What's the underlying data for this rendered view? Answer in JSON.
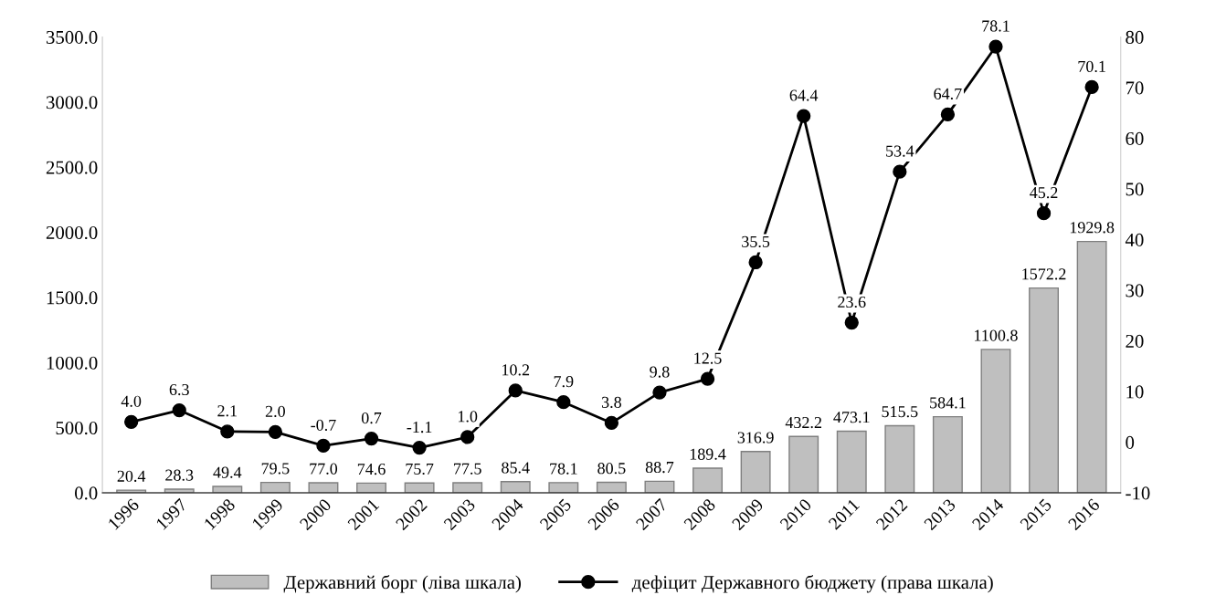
{
  "chart_data": {
    "type": "bar",
    "categories": [
      "1996",
      "1997",
      "1998",
      "1999",
      "2000",
      "2001",
      "2002",
      "2003",
      "2004",
      "2005",
      "2006",
      "2007",
      "2008",
      "2009",
      "2010",
      "2011",
      "2012",
      "2013",
      "2014",
      "2015",
      "2016"
    ],
    "series": [
      {
        "name": "Державний борг (ліва шкала)",
        "color": "#bfbfbf",
        "values": [
          20.4,
          28.3,
          49.4,
          79.5,
          77.0,
          74.6,
          75.7,
          77.5,
          85.4,
          78.1,
          80.5,
          88.7,
          189.4,
          316.9,
          432.2,
          473.1,
          515.5,
          584.1,
          1100.8,
          1572.2,
          1929.8
        ],
        "value_labels": [
          "20.4",
          "28.3",
          "49.4",
          "79.5",
          "77.0",
          "74.6",
          "75.7",
          "77.5",
          "85.4",
          "78.1",
          "80.5",
          "88.7",
          "189.4",
          "316.9",
          "432.2",
          "473.1",
          "515.5",
          "584.1",
          "1100.8",
          "1572.2",
          "1929.8"
        ]
      },
      {
        "name": "дефіцит Державного бюджету (права шкала)",
        "type": "line",
        "axis": "y2",
        "color": "#000000",
        "values": [
          4.0,
          6.3,
          2.1,
          2.0,
          -0.7,
          0.7,
          -1.1,
          1.0,
          10.2,
          7.9,
          3.8,
          9.8,
          12.5,
          35.5,
          64.4,
          23.6,
          53.4,
          64.7,
          78.1,
          45.2,
          70.1
        ],
        "value_labels": [
          "4.0",
          "6.3",
          "2.1",
          "2.0",
          "-0.7",
          "0.7",
          "-1.1",
          "1.0",
          "10.2",
          "7.9",
          "3.8",
          "9.8",
          "12.5",
          "35.5",
          "64.4",
          "23.6",
          "53.4",
          "64.7",
          "78.1",
          "45.2",
          "70.1"
        ]
      }
    ],
    "ylim": [
      0,
      3500
    ],
    "yticks": [
      {
        "value": 0,
        "label": "0.0"
      },
      {
        "value": 500,
        "label": "500.0"
      },
      {
        "value": 1000,
        "label": "1000.0"
      },
      {
        "value": 1500,
        "label": "1500.0"
      },
      {
        "value": 2000,
        "label": "2000.0"
      },
      {
        "value": 2500,
        "label": "2500.0"
      },
      {
        "value": 3000,
        "label": "3000.0"
      },
      {
        "value": 3500,
        "label": "3500.0"
      }
    ],
    "y2lim": [
      -10,
      80
    ],
    "y2ticks": [
      -10,
      0,
      10,
      20,
      30,
      40,
      50,
      60,
      70,
      80
    ],
    "marker": "circle",
    "line_style": "solid",
    "grid": false,
    "legend": "bottom"
  }
}
